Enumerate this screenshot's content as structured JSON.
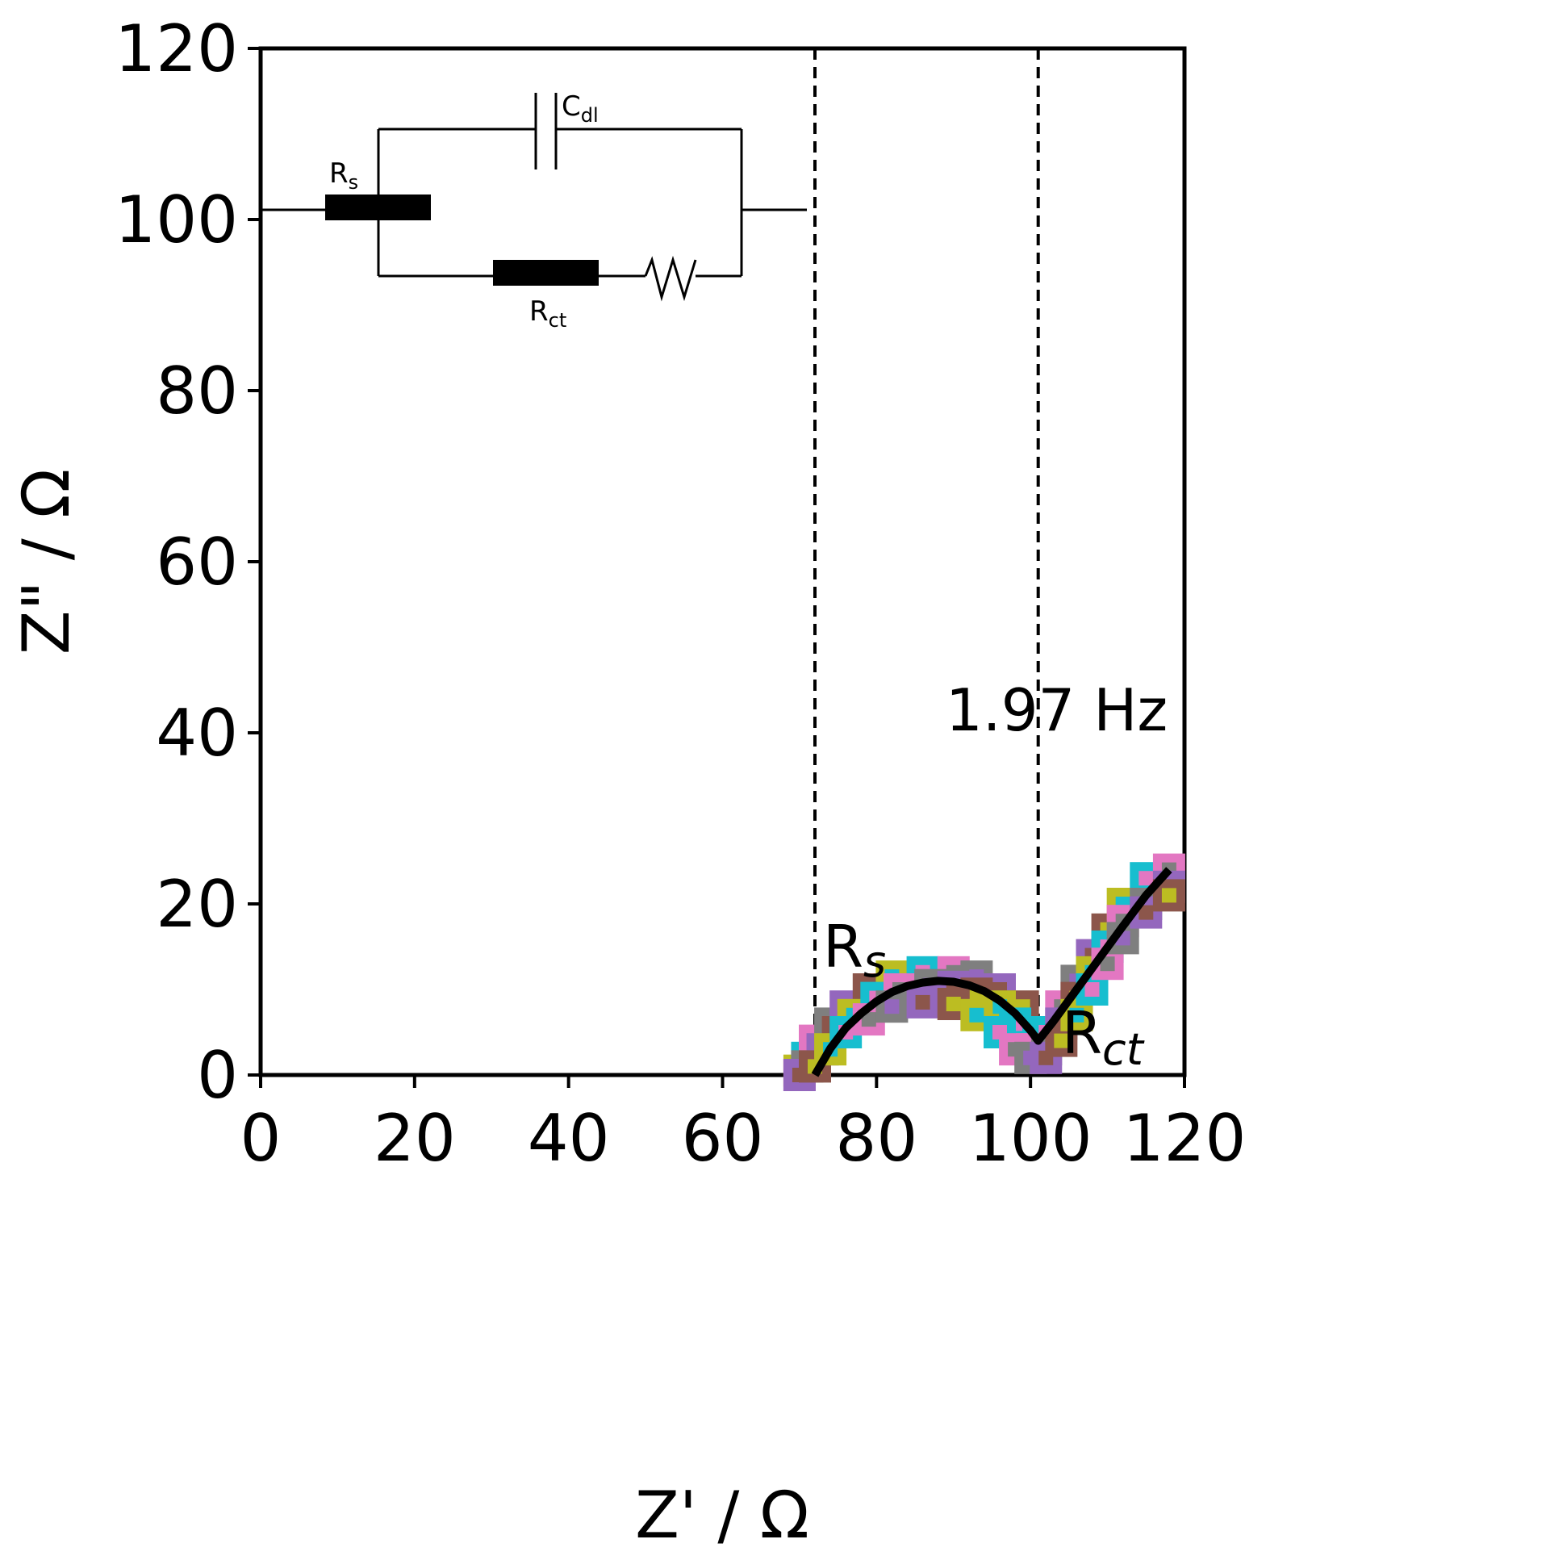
{
  "chart_data": {
    "type": "scatter",
    "xlabel": "Z' / Ω",
    "ylabel": "Z\" / Ω",
    "xlim": [
      0,
      120
    ],
    "ylim": [
      0,
      120
    ],
    "xticks": [
      0,
      20,
      40,
      60,
      80,
      100,
      120
    ],
    "yticks": [
      0,
      20,
      40,
      60,
      80,
      100,
      120
    ],
    "grid": false,
    "vlines": [
      72,
      101
    ],
    "marker_colors": [
      "#bcbd22",
      "#17becf",
      "#e377c2",
      "#7f7f7f",
      "#9467bd",
      "#8c564b"
    ],
    "fit_line_color": "#000000",
    "series": [
      {
        "marker": "square",
        "points": [
          [
            70,
            0.5
          ],
          [
            71,
            2
          ],
          [
            72,
            4
          ],
          [
            74,
            6
          ],
          [
            76,
            8
          ],
          [
            79,
            10
          ],
          [
            82,
            11.5
          ],
          [
            86,
            12
          ],
          [
            90,
            12
          ],
          [
            93,
            11.5
          ],
          [
            96,
            10
          ],
          [
            99,
            8
          ],
          [
            101,
            5
          ],
          [
            102,
            5
          ],
          [
            104,
            8
          ],
          [
            106,
            11
          ],
          [
            108,
            14
          ],
          [
            110,
            17
          ],
          [
            112,
            20
          ],
          [
            115,
            23
          ],
          [
            118,
            24
          ]
        ]
      },
      {
        "marker": "square",
        "points": [
          [
            70,
            0
          ],
          [
            71,
            1
          ],
          [
            73,
            3
          ],
          [
            75,
            5
          ],
          [
            77,
            7
          ],
          [
            80,
            9
          ],
          [
            83,
            10
          ],
          [
            87,
            10.5
          ],
          [
            90,
            10.3
          ],
          [
            93,
            9.5
          ],
          [
            96,
            8
          ],
          [
            98,
            6
          ],
          [
            100,
            3
          ],
          [
            102,
            3
          ],
          [
            104,
            6
          ],
          [
            106,
            9
          ],
          [
            108,
            12
          ],
          [
            110,
            15
          ],
          [
            112,
            18
          ],
          [
            115,
            20
          ],
          [
            118,
            22
          ]
        ]
      },
      {
        "marker": "square",
        "points": [
          [
            70,
            0
          ],
          [
            72,
            1
          ],
          [
            74,
            3
          ],
          [
            76,
            5
          ],
          [
            79,
            6.5
          ],
          [
            82,
            8
          ],
          [
            86,
            8.5
          ],
          [
            90,
            8.3
          ],
          [
            93,
            7
          ],
          [
            96,
            5
          ],
          [
            98,
            3
          ],
          [
            100,
            2
          ],
          [
            102,
            2
          ],
          [
            104,
            4
          ],
          [
            106,
            7
          ],
          [
            108,
            10
          ],
          [
            110,
            13
          ],
          [
            112,
            16
          ],
          [
            115,
            19
          ],
          [
            118,
            21
          ]
        ]
      }
    ],
    "fit_line": [
      [
        72,
        0
      ],
      [
        74,
        3.1
      ],
      [
        76,
        5.5
      ],
      [
        78,
        7.2
      ],
      [
        80,
        8.6
      ],
      [
        82,
        9.7
      ],
      [
        84,
        10.4
      ],
      [
        86,
        10.8
      ],
      [
        88,
        11
      ],
      [
        90,
        10.9
      ],
      [
        92,
        10.5
      ],
      [
        94,
        9.8
      ],
      [
        96,
        8.7
      ],
      [
        98,
        7.2
      ],
      [
        100,
        5.2
      ],
      [
        101,
        4
      ],
      [
        103,
        6.3
      ],
      [
        106,
        10
      ],
      [
        109,
        13.7
      ],
      [
        112,
        17.4
      ],
      [
        115,
        21
      ],
      [
        118,
        24
      ]
    ],
    "annotations": {
      "freq": "1.97 Hz",
      "rs_main": "R",
      "rs_sub": "s",
      "rct_main": "R",
      "rct_sub": "ct"
    },
    "inset": {
      "cdl_main": "C",
      "cdl_sub": "dl",
      "rs_main": "R",
      "rs_sub": "s",
      "rct_main": "R",
      "rct_sub": "ct"
    }
  }
}
